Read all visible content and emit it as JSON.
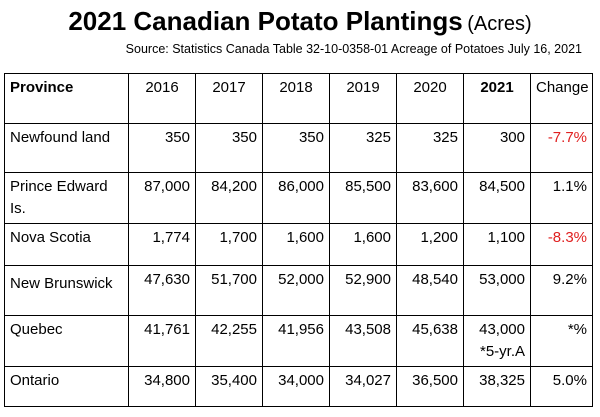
{
  "header": {
    "title": "2021 Canadian Potato Plantings",
    "title_unit": "(Acres)",
    "source": "Source: Statistics Canada Table 32-10-0358-01 Acreage of Potatoes July 16, 2021"
  },
  "table": {
    "columns": [
      "Province",
      "2016",
      "2017",
      "2018",
      "2019",
      "2020",
      "2021",
      "Change"
    ],
    "rows": [
      {
        "province": "Newfound land",
        "y2016": "350",
        "y2017": "350",
        "y2018": "350",
        "y2019": "325",
        "y2020": "325",
        "y2021": "300",
        "y2021_note": "",
        "change": "-7.7%",
        "change_color": "#e02020"
      },
      {
        "province": "Prince Edward Is.",
        "y2016": "87,000",
        "y2017": "84,200",
        "y2018": "86,000",
        "y2019": "85,500",
        "y2020": "83,600",
        "y2021": "84,500",
        "y2021_note": "",
        "change": "1.1%",
        "change_color": "#000000"
      },
      {
        "province": "Nova Scotia",
        "y2016": "1,774",
        "y2017": "1,700",
        "y2018": "1,600",
        "y2019": "1,600",
        "y2020": "1,200",
        "y2021": "1,100",
        "y2021_note": "",
        "change": "-8.3%",
        "change_color": "#e02020"
      },
      {
        "province": "New Brunswick",
        "y2016": "47,630",
        "y2017": "51,700",
        "y2018": "52,000",
        "y2019": "52,900",
        "y2020": "48,540",
        "y2021": "53,000",
        "y2021_note": "",
        "change": "9.2%",
        "change_color": "#000000"
      },
      {
        "province": "Quebec",
        "y2016": "41,761",
        "y2017": "42,255",
        "y2018": "41,956",
        "y2019": "43,508",
        "y2020": "45,638",
        "y2021": "43,000",
        "y2021_note": "*5-yr.A",
        "change": "*%",
        "change_color": "#000000"
      },
      {
        "province": "Ontario",
        "y2016": "34,800",
        "y2017": "35,400",
        "y2018": "34,000",
        "y2019": "34,027",
        "y2020": "36,500",
        "y2021": "38,325",
        "y2021_note": "",
        "change": "5.0%",
        "change_color": "#000000"
      }
    ]
  }
}
